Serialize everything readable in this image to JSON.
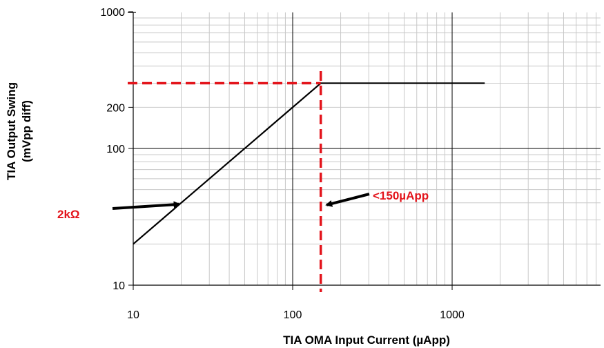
{
  "chart_data": {
    "type": "line",
    "xscale": "log",
    "yscale": "log",
    "xlim": [
      10,
      8000
    ],
    "ylim": [
      10,
      1000
    ],
    "grid": true,
    "xlabel": "TIA OMA Input Current (µApp)",
    "ylabel_lines": [
      "TIA Output Swing",
      "(mVpp diff)"
    ],
    "x_ticks": [
      10,
      100,
      1000
    ],
    "y_ticks": [
      10,
      100,
      200,
      1000
    ],
    "x_tick_labels": [
      "10",
      "100",
      "1000"
    ],
    "y_tick_labels": [
      "10",
      "100",
      "200",
      "1000"
    ],
    "series": [
      {
        "x": [
          10,
          150,
          1600
        ],
        "y": [
          20,
          300,
          300
        ],
        "color": "#000000"
      }
    ],
    "reference_lines": [
      {
        "orientation": "vertical",
        "value": 150,
        "color": "#e3141b",
        "style": "dashed"
      },
      {
        "orientation": "horizontal",
        "value": 300,
        "color": "#e3141b",
        "style": "dashed"
      }
    ],
    "annotations": [
      {
        "text": "2kΩ",
        "color": "#e3141b",
        "points_to": [
          20,
          40
        ]
      },
      {
        "text": "<150µApp",
        "color": "#e3141b",
        "points_to": [
          160,
          40
        ]
      }
    ]
  }
}
